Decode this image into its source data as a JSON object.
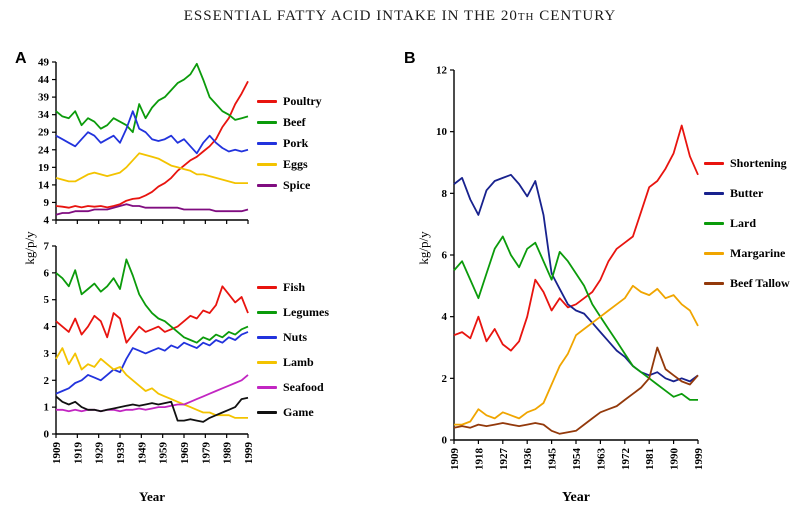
{
  "title": {
    "pre": "ESSENTIAL FATTY ACID INTAKE IN THE 20",
    "sup": "TH",
    "post": " CENTURY"
  },
  "panels": {
    "a_label": "A",
    "b_label": "B"
  },
  "chart_data": [
    {
      "id": "a-top",
      "type": "line",
      "panel": "A",
      "ylabel": "kg/p/y",
      "xlim": [
        1909,
        1999
      ],
      "ylim": [
        4,
        49
      ],
      "yticks": [
        4,
        9,
        14,
        19,
        24,
        29,
        34,
        39,
        44,
        49
      ],
      "xticks": [
        1909,
        1919,
        1929,
        1939,
        1949,
        1959,
        1969,
        1979,
        1989,
        1999
      ],
      "x": [
        1909,
        1912,
        1915,
        1918,
        1921,
        1924,
        1927,
        1930,
        1933,
        1936,
        1939,
        1942,
        1945,
        1948,
        1951,
        1954,
        1957,
        1960,
        1963,
        1966,
        1969,
        1972,
        1975,
        1978,
        1981,
        1984,
        1987,
        1990,
        1993,
        1996,
        1999
      ],
      "series": [
        {
          "name": "Poultry",
          "color": "#e8140f",
          "values": [
            8,
            7.8,
            7.5,
            8,
            7.6,
            8,
            7.8,
            8,
            7.6,
            8,
            8.5,
            9.5,
            10,
            10.2,
            11,
            12,
            13.5,
            14.5,
            16,
            18,
            19.5,
            21,
            22,
            23.5,
            25,
            27,
            30.5,
            33,
            37,
            40,
            43.5
          ]
        },
        {
          "name": "Beef",
          "color": "#0b9b0b",
          "values": [
            35,
            33.5,
            33,
            35,
            31,
            33,
            32,
            30,
            31,
            33,
            32,
            31,
            29,
            37,
            33,
            36,
            38,
            39,
            41,
            43,
            44,
            45.5,
            48.5,
            44,
            39,
            37,
            35,
            34,
            32.5,
            33,
            33.5
          ]
        },
        {
          "name": "Pork",
          "color": "#2233dd",
          "values": [
            28,
            27,
            26,
            25,
            27,
            29,
            28,
            26,
            27,
            28,
            26,
            30,
            35,
            30,
            29,
            27,
            26.5,
            27,
            28,
            26,
            27,
            25,
            23,
            26,
            28,
            26,
            24.5,
            23.5,
            24,
            23.5,
            24
          ]
        },
        {
          "name": "Eggs",
          "color": "#f3c300",
          "values": [
            16,
            15.5,
            15,
            15,
            16,
            17,
            17.5,
            17,
            16.5,
            17,
            17.5,
            19,
            21,
            23,
            22.5,
            22,
            21.5,
            20.5,
            19.5,
            19,
            18.5,
            18,
            17,
            17,
            16.5,
            16,
            15.5,
            15,
            14.5,
            14.5,
            14.5
          ]
        },
        {
          "name": "Spice",
          "color": "#800d80",
          "values": [
            5.5,
            6,
            6,
            6.5,
            6.5,
            6.5,
            7,
            7,
            7,
            7.5,
            8,
            8.5,
            8,
            8,
            7.5,
            7.5,
            7.5,
            7.5,
            7.5,
            7.5,
            7,
            7,
            7,
            7,
            7,
            6.5,
            6.5,
            6.5,
            6.5,
            6.5,
            7
          ]
        }
      ]
    },
    {
      "id": "a-bottom",
      "type": "line",
      "panel": "A",
      "xlabel": "Year",
      "xlim": [
        1909,
        1999
      ],
      "ylim": [
        0,
        7
      ],
      "yticks": [
        0,
        1,
        2,
        3,
        4,
        5,
        6,
        7
      ],
      "xticks": [
        1909,
        1919,
        1929,
        1939,
        1949,
        1959,
        1969,
        1979,
        1989,
        1999
      ],
      "x": [
        1909,
        1912,
        1915,
        1918,
        1921,
        1924,
        1927,
        1930,
        1933,
        1936,
        1939,
        1942,
        1945,
        1948,
        1951,
        1954,
        1957,
        1960,
        1963,
        1966,
        1969,
        1972,
        1975,
        1978,
        1981,
        1984,
        1987,
        1990,
        1993,
        1996,
        1999
      ],
      "series": [
        {
          "name": "Fish",
          "color": "#e8140f",
          "values": [
            4.2,
            4,
            3.8,
            4.3,
            3.7,
            4,
            4.4,
            4.2,
            3.6,
            4.5,
            4.3,
            3.4,
            3.7,
            4,
            3.8,
            3.9,
            4,
            3.8,
            3.9,
            4,
            4.2,
            4.4,
            4.3,
            4.6,
            4.5,
            4.8,
            5.5,
            5.2,
            4.9,
            5.1,
            4.5
          ]
        },
        {
          "name": "Legumes",
          "color": "#0b9b0b",
          "values": [
            6,
            5.8,
            5.5,
            6.1,
            5.2,
            5.4,
            5.6,
            5.3,
            5.5,
            5.8,
            5.4,
            6.5,
            5.9,
            5.2,
            4.8,
            4.5,
            4.3,
            4.2,
            4,
            3.8,
            3.6,
            3.5,
            3.4,
            3.6,
            3.5,
            3.7,
            3.6,
            3.8,
            3.7,
            3.9,
            4
          ]
        },
        {
          "name": "Nuts",
          "color": "#2233dd",
          "values": [
            1.5,
            1.6,
            1.7,
            1.9,
            2,
            2.2,
            2.1,
            2,
            2.2,
            2.4,
            2.3,
            2.8,
            3.2,
            3.1,
            3,
            3.1,
            3.2,
            3.1,
            3.3,
            3.2,
            3.4,
            3.3,
            3.2,
            3.4,
            3.3,
            3.5,
            3.4,
            3.6,
            3.5,
            3.7,
            3.8
          ]
        },
        {
          "name": "Lamb",
          "color": "#f3c300",
          "values": [
            2.8,
            3.2,
            2.6,
            3,
            2.4,
            2.6,
            2.5,
            2.8,
            2.6,
            2.4,
            2.5,
            2.2,
            2,
            1.8,
            1.6,
            1.7,
            1.5,
            1.4,
            1.3,
            1.2,
            1.1,
            1,
            0.9,
            0.8,
            0.8,
            0.7,
            0.7,
            0.7,
            0.6,
            0.6,
            0.6
          ]
        },
        {
          "name": "Seafood",
          "color": "#c226c2",
          "values": [
            0.9,
            0.9,
            0.85,
            0.9,
            0.85,
            0.9,
            0.9,
            0.85,
            0.9,
            0.9,
            0.85,
            0.9,
            0.9,
            0.95,
            0.9,
            0.95,
            1,
            1,
            1.05,
            1.1,
            1.1,
            1.2,
            1.3,
            1.4,
            1.5,
            1.6,
            1.7,
            1.8,
            1.9,
            2,
            2.2
          ]
        },
        {
          "name": "Game",
          "color": "#111111",
          "values": [
            1.4,
            1.2,
            1.1,
            1.2,
            1,
            0.9,
            0.9,
            0.85,
            0.9,
            0.95,
            1,
            1.05,
            1.1,
            1.05,
            1.1,
            1.15,
            1.1,
            1.15,
            1.2,
            0.5,
            0.5,
            0.55,
            0.5,
            0.45,
            0.6,
            0.7,
            0.8,
            0.9,
            1,
            1.3,
            1.35
          ]
        }
      ]
    },
    {
      "id": "b",
      "type": "line",
      "panel": "B",
      "ylabel": "kg/p/y",
      "xlabel": "Year",
      "xlim": [
        1909,
        1999
      ],
      "ylim": [
        0,
        12
      ],
      "yticks": [
        0,
        2,
        4,
        6,
        8,
        10,
        12
      ],
      "xticks": [
        1909,
        1918,
        1927,
        1936,
        1945,
        1954,
        1963,
        1972,
        1981,
        1990,
        1999
      ],
      "x": [
        1909,
        1912,
        1915,
        1918,
        1921,
        1924,
        1927,
        1930,
        1933,
        1936,
        1939,
        1942,
        1945,
        1948,
        1951,
        1954,
        1957,
        1960,
        1963,
        1966,
        1969,
        1972,
        1975,
        1978,
        1981,
        1984,
        1987,
        1990,
        1993,
        1996,
        1999
      ],
      "series": [
        {
          "name": "Shortening",
          "color": "#e8140f",
          "values": [
            3.4,
            3.5,
            3.3,
            4,
            3.2,
            3.6,
            3.1,
            2.9,
            3.2,
            4,
            5.2,
            4.8,
            4.2,
            4.6,
            4.3,
            4.4,
            4.6,
            4.8,
            5.2,
            5.8,
            6.2,
            6.4,
            6.6,
            7.4,
            8.2,
            8.4,
            8.8,
            9.3,
            10.2,
            9.2,
            8.6
          ]
        },
        {
          "name": "Butter",
          "color": "#18228e",
          "values": [
            8.3,
            8.5,
            7.8,
            7.3,
            8.1,
            8.4,
            8.5,
            8.6,
            8.3,
            7.9,
            8.4,
            7.3,
            5.4,
            4.9,
            4.4,
            4.2,
            4.1,
            3.8,
            3.5,
            3.2,
            2.9,
            2.7,
            2.4,
            2.2,
            2.1,
            2.2,
            2,
            1.9,
            2,
            1.9,
            2.1
          ]
        },
        {
          "name": "Lard",
          "color": "#0b9b0b",
          "values": [
            5.5,
            5.8,
            5.2,
            4.6,
            5.4,
            6.2,
            6.6,
            6,
            5.6,
            6.2,
            6.4,
            5.8,
            5.2,
            6.1,
            5.8,
            5.4,
            5,
            4.4,
            4,
            3.6,
            3.2,
            2.8,
            2.4,
            2.2,
            2,
            1.8,
            1.6,
            1.4,
            1.5,
            1.3,
            1.3
          ]
        },
        {
          "name": "Margarine",
          "color": "#f0a500",
          "values": [
            0.5,
            0.5,
            0.6,
            1,
            0.8,
            0.7,
            0.9,
            0.8,
            0.7,
            0.9,
            1,
            1.2,
            1.8,
            2.4,
            2.8,
            3.4,
            3.6,
            3.8,
            4,
            4.2,
            4.4,
            4.6,
            5,
            4.8,
            4.7,
            4.9,
            4.6,
            4.7,
            4.4,
            4.2,
            3.7
          ]
        },
        {
          "name": "Beef Tallow",
          "color": "#93390b",
          "values": [
            0.4,
            0.45,
            0.4,
            0.5,
            0.45,
            0.5,
            0.55,
            0.5,
            0.45,
            0.5,
            0.55,
            0.5,
            0.3,
            0.2,
            0.25,
            0.3,
            0.5,
            0.7,
            0.9,
            1,
            1.1,
            1.3,
            1.5,
            1.7,
            2,
            3,
            2.3,
            2.1,
            1.9,
            1.8,
            2.1
          ]
        }
      ]
    }
  ]
}
